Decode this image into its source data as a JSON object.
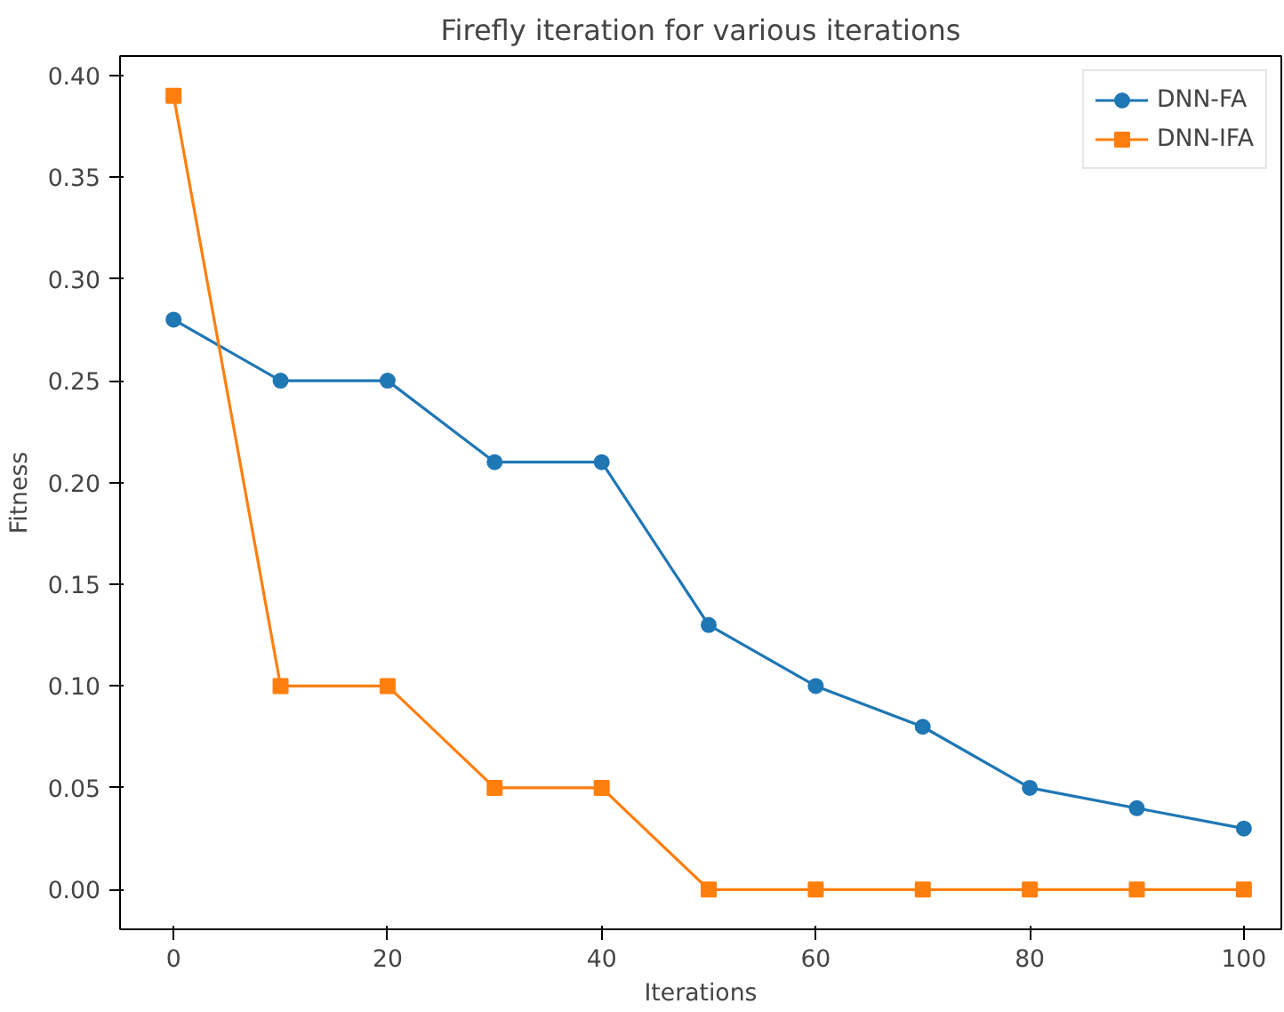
{
  "chart_data": {
    "type": "line",
    "title": "Firefly iteration for various iterations",
    "xlabel": "Iterations",
    "ylabel": "Fitness",
    "x": [
      0,
      10,
      20,
      30,
      40,
      50,
      60,
      70,
      80,
      90,
      100
    ],
    "series": [
      {
        "name": "DNN-FA",
        "color": "#1f77b4",
        "marker": "circle",
        "values": [
          0.28,
          0.25,
          0.25,
          0.21,
          0.21,
          0.13,
          0.1,
          0.08,
          0.05,
          0.04,
          0.03
        ]
      },
      {
        "name": "DNN-IFA",
        "color": "#ff7f0e",
        "marker": "square",
        "values": [
          0.39,
          0.1,
          0.1,
          0.05,
          0.05,
          0.0,
          0.0,
          0.0,
          0.0,
          0.0,
          0.0
        ]
      }
    ],
    "xlim": [
      -5,
      103.5
    ],
    "xticks": [
      0,
      20,
      40,
      60,
      80,
      100
    ],
    "ylim": [
      -0.0195,
      0.4095
    ],
    "yticks": [
      {
        "value": 0.0,
        "label": "0.00"
      },
      {
        "value": 0.05,
        "label": "0.05"
      },
      {
        "value": 0.1,
        "label": "0.10"
      },
      {
        "value": 0.15,
        "label": "0.15"
      },
      {
        "value": 0.2,
        "label": "0.20"
      },
      {
        "value": 0.25,
        "label": "0.25"
      },
      {
        "value": 0.3,
        "label": "0.30"
      },
      {
        "value": 0.35,
        "label": "0.35"
      },
      {
        "value": 0.4,
        "label": "0.40"
      }
    ],
    "grid": false,
    "legend": "top right",
    "line_style": "solid"
  }
}
